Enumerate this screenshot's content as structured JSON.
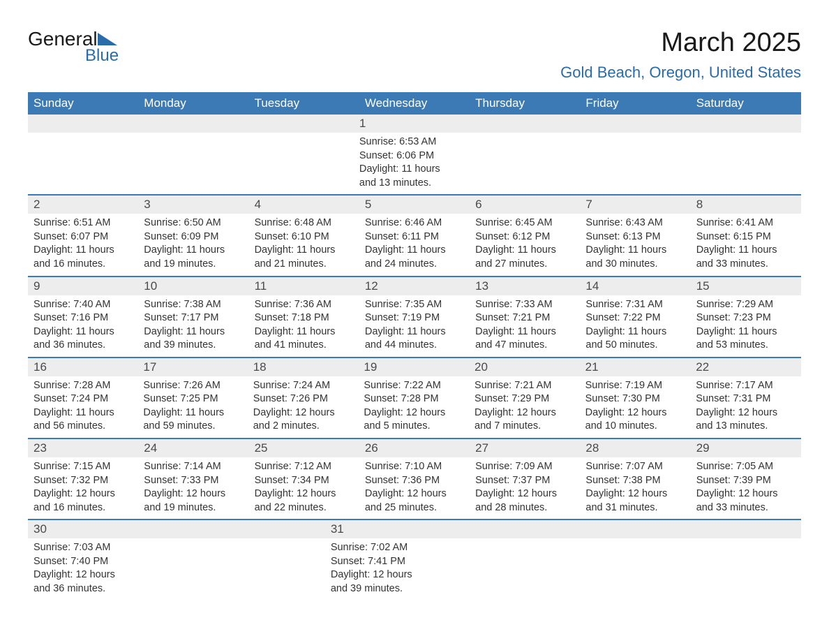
{
  "logo": {
    "text_general": "General",
    "text_blue": "Blue"
  },
  "title": "March 2025",
  "location": "Gold Beach, Oregon, United States",
  "weekdays": [
    "Sunday",
    "Monday",
    "Tuesday",
    "Wednesday",
    "Thursday",
    "Friday",
    "Saturday"
  ],
  "colors": {
    "header_bg": "#3b7ab5",
    "header_text": "#ffffff",
    "day_number_bg": "#ededed",
    "accent": "#2a6caa",
    "text": "#333333"
  },
  "weeks": [
    {
      "days": [
        {
          "num": "",
          "sunrise": "",
          "sunset": "",
          "daylight1": "",
          "daylight2": ""
        },
        {
          "num": "",
          "sunrise": "",
          "sunset": "",
          "daylight1": "",
          "daylight2": ""
        },
        {
          "num": "",
          "sunrise": "",
          "sunset": "",
          "daylight1": "",
          "daylight2": ""
        },
        {
          "num": "",
          "sunrise": "",
          "sunset": "",
          "daylight1": "",
          "daylight2": ""
        },
        {
          "num": "",
          "sunrise": "",
          "sunset": "",
          "daylight1": "",
          "daylight2": ""
        },
        {
          "num": "",
          "sunrise": "",
          "sunset": "",
          "daylight1": "",
          "daylight2": ""
        },
        {
          "num": "1",
          "sunrise": "Sunrise: 6:53 AM",
          "sunset": "Sunset: 6:06 PM",
          "daylight1": "Daylight: 11 hours",
          "daylight2": "and 13 minutes."
        }
      ]
    },
    {
      "days": [
        {
          "num": "2",
          "sunrise": "Sunrise: 6:51 AM",
          "sunset": "Sunset: 6:07 PM",
          "daylight1": "Daylight: 11 hours",
          "daylight2": "and 16 minutes."
        },
        {
          "num": "3",
          "sunrise": "Sunrise: 6:50 AM",
          "sunset": "Sunset: 6:09 PM",
          "daylight1": "Daylight: 11 hours",
          "daylight2": "and 19 minutes."
        },
        {
          "num": "4",
          "sunrise": "Sunrise: 6:48 AM",
          "sunset": "Sunset: 6:10 PM",
          "daylight1": "Daylight: 11 hours",
          "daylight2": "and 21 minutes."
        },
        {
          "num": "5",
          "sunrise": "Sunrise: 6:46 AM",
          "sunset": "Sunset: 6:11 PM",
          "daylight1": "Daylight: 11 hours",
          "daylight2": "and 24 minutes."
        },
        {
          "num": "6",
          "sunrise": "Sunrise: 6:45 AM",
          "sunset": "Sunset: 6:12 PM",
          "daylight1": "Daylight: 11 hours",
          "daylight2": "and 27 minutes."
        },
        {
          "num": "7",
          "sunrise": "Sunrise: 6:43 AM",
          "sunset": "Sunset: 6:13 PM",
          "daylight1": "Daylight: 11 hours",
          "daylight2": "and 30 minutes."
        },
        {
          "num": "8",
          "sunrise": "Sunrise: 6:41 AM",
          "sunset": "Sunset: 6:15 PM",
          "daylight1": "Daylight: 11 hours",
          "daylight2": "and 33 minutes."
        }
      ]
    },
    {
      "days": [
        {
          "num": "9",
          "sunrise": "Sunrise: 7:40 AM",
          "sunset": "Sunset: 7:16 PM",
          "daylight1": "Daylight: 11 hours",
          "daylight2": "and 36 minutes."
        },
        {
          "num": "10",
          "sunrise": "Sunrise: 7:38 AM",
          "sunset": "Sunset: 7:17 PM",
          "daylight1": "Daylight: 11 hours",
          "daylight2": "and 39 minutes."
        },
        {
          "num": "11",
          "sunrise": "Sunrise: 7:36 AM",
          "sunset": "Sunset: 7:18 PM",
          "daylight1": "Daylight: 11 hours",
          "daylight2": "and 41 minutes."
        },
        {
          "num": "12",
          "sunrise": "Sunrise: 7:35 AM",
          "sunset": "Sunset: 7:19 PM",
          "daylight1": "Daylight: 11 hours",
          "daylight2": "and 44 minutes."
        },
        {
          "num": "13",
          "sunrise": "Sunrise: 7:33 AM",
          "sunset": "Sunset: 7:21 PM",
          "daylight1": "Daylight: 11 hours",
          "daylight2": "and 47 minutes."
        },
        {
          "num": "14",
          "sunrise": "Sunrise: 7:31 AM",
          "sunset": "Sunset: 7:22 PM",
          "daylight1": "Daylight: 11 hours",
          "daylight2": "and 50 minutes."
        },
        {
          "num": "15",
          "sunrise": "Sunrise: 7:29 AM",
          "sunset": "Sunset: 7:23 PM",
          "daylight1": "Daylight: 11 hours",
          "daylight2": "and 53 minutes."
        }
      ]
    },
    {
      "days": [
        {
          "num": "16",
          "sunrise": "Sunrise: 7:28 AM",
          "sunset": "Sunset: 7:24 PM",
          "daylight1": "Daylight: 11 hours",
          "daylight2": "and 56 minutes."
        },
        {
          "num": "17",
          "sunrise": "Sunrise: 7:26 AM",
          "sunset": "Sunset: 7:25 PM",
          "daylight1": "Daylight: 11 hours",
          "daylight2": "and 59 minutes."
        },
        {
          "num": "18",
          "sunrise": "Sunrise: 7:24 AM",
          "sunset": "Sunset: 7:26 PM",
          "daylight1": "Daylight: 12 hours",
          "daylight2": "and 2 minutes."
        },
        {
          "num": "19",
          "sunrise": "Sunrise: 7:22 AM",
          "sunset": "Sunset: 7:28 PM",
          "daylight1": "Daylight: 12 hours",
          "daylight2": "and 5 minutes."
        },
        {
          "num": "20",
          "sunrise": "Sunrise: 7:21 AM",
          "sunset": "Sunset: 7:29 PM",
          "daylight1": "Daylight: 12 hours",
          "daylight2": "and 7 minutes."
        },
        {
          "num": "21",
          "sunrise": "Sunrise: 7:19 AM",
          "sunset": "Sunset: 7:30 PM",
          "daylight1": "Daylight: 12 hours",
          "daylight2": "and 10 minutes."
        },
        {
          "num": "22",
          "sunrise": "Sunrise: 7:17 AM",
          "sunset": "Sunset: 7:31 PM",
          "daylight1": "Daylight: 12 hours",
          "daylight2": "and 13 minutes."
        }
      ]
    },
    {
      "days": [
        {
          "num": "23",
          "sunrise": "Sunrise: 7:15 AM",
          "sunset": "Sunset: 7:32 PM",
          "daylight1": "Daylight: 12 hours",
          "daylight2": "and 16 minutes."
        },
        {
          "num": "24",
          "sunrise": "Sunrise: 7:14 AM",
          "sunset": "Sunset: 7:33 PM",
          "daylight1": "Daylight: 12 hours",
          "daylight2": "and 19 minutes."
        },
        {
          "num": "25",
          "sunrise": "Sunrise: 7:12 AM",
          "sunset": "Sunset: 7:34 PM",
          "daylight1": "Daylight: 12 hours",
          "daylight2": "and 22 minutes."
        },
        {
          "num": "26",
          "sunrise": "Sunrise: 7:10 AM",
          "sunset": "Sunset: 7:36 PM",
          "daylight1": "Daylight: 12 hours",
          "daylight2": "and 25 minutes."
        },
        {
          "num": "27",
          "sunrise": "Sunrise: 7:09 AM",
          "sunset": "Sunset: 7:37 PM",
          "daylight1": "Daylight: 12 hours",
          "daylight2": "and 28 minutes."
        },
        {
          "num": "28",
          "sunrise": "Sunrise: 7:07 AM",
          "sunset": "Sunset: 7:38 PM",
          "daylight1": "Daylight: 12 hours",
          "daylight2": "and 31 minutes."
        },
        {
          "num": "29",
          "sunrise": "Sunrise: 7:05 AM",
          "sunset": "Sunset: 7:39 PM",
          "daylight1": "Daylight: 12 hours",
          "daylight2": "and 33 minutes."
        }
      ]
    },
    {
      "days": [
        {
          "num": "30",
          "sunrise": "Sunrise: 7:03 AM",
          "sunset": "Sunset: 7:40 PM",
          "daylight1": "Daylight: 12 hours",
          "daylight2": "and 36 minutes."
        },
        {
          "num": "31",
          "sunrise": "Sunrise: 7:02 AM",
          "sunset": "Sunset: 7:41 PM",
          "daylight1": "Daylight: 12 hours",
          "daylight2": "and 39 minutes."
        },
        {
          "num": "",
          "sunrise": "",
          "sunset": "",
          "daylight1": "",
          "daylight2": ""
        },
        {
          "num": "",
          "sunrise": "",
          "sunset": "",
          "daylight1": "",
          "daylight2": ""
        },
        {
          "num": "",
          "sunrise": "",
          "sunset": "",
          "daylight1": "",
          "daylight2": ""
        },
        {
          "num": "",
          "sunrise": "",
          "sunset": "",
          "daylight1": "",
          "daylight2": ""
        },
        {
          "num": "",
          "sunrise": "",
          "sunset": "",
          "daylight1": "",
          "daylight2": ""
        }
      ]
    }
  ]
}
